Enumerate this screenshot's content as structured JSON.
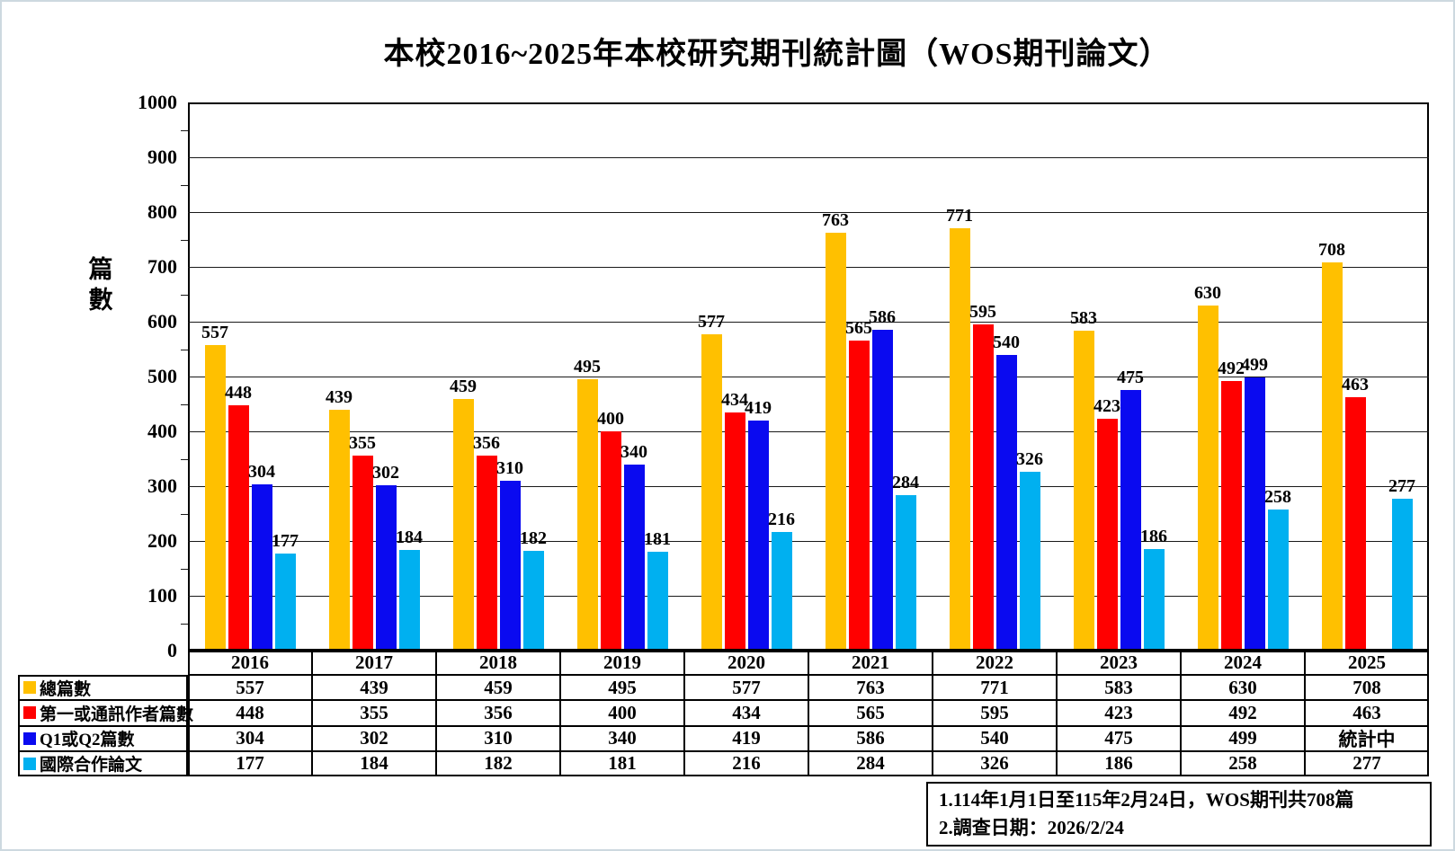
{
  "chart_data": {
    "type": "bar",
    "title": "本校2016~2025年本校研究期刊統計圖（WOS期刊論文）",
    "ylabel": "篇數",
    "xlabel": "",
    "ylim": [
      0,
      1000
    ],
    "y_tick_step": 100,
    "y_minor_tick_step": 50,
    "grid": true,
    "legend_position": "table-left",
    "categories": [
      "2016",
      "2017",
      "2018",
      "2019",
      "2020",
      "2021",
      "2022",
      "2023",
      "2024",
      "2025"
    ],
    "series": [
      {
        "name": "總篇數",
        "color": "#FFC000",
        "values": [
          557,
          439,
          459,
          495,
          577,
          763,
          771,
          583,
          630,
          708
        ]
      },
      {
        "name": "第一或通訊作者篇數",
        "color": "#FF0000",
        "values": [
          448,
          355,
          356,
          400,
          434,
          565,
          595,
          423,
          492,
          463
        ]
      },
      {
        "name": "Q1或Q2篇數",
        "color": "#0A0AF0",
        "values": [
          304,
          302,
          310,
          340,
          419,
          586,
          540,
          475,
          499,
          null
        ],
        "pending_label": "統計中"
      },
      {
        "name": "國際合作論文",
        "color": "#00B0F0",
        "values": [
          177,
          184,
          182,
          181,
          216,
          284,
          326,
          186,
          258,
          277
        ]
      }
    ]
  },
  "notes": {
    "line1": "1.114年1月1日至115年2月24日，WOS期刊共708篇",
    "line2": "2.調查日期：2026/2/24"
  }
}
